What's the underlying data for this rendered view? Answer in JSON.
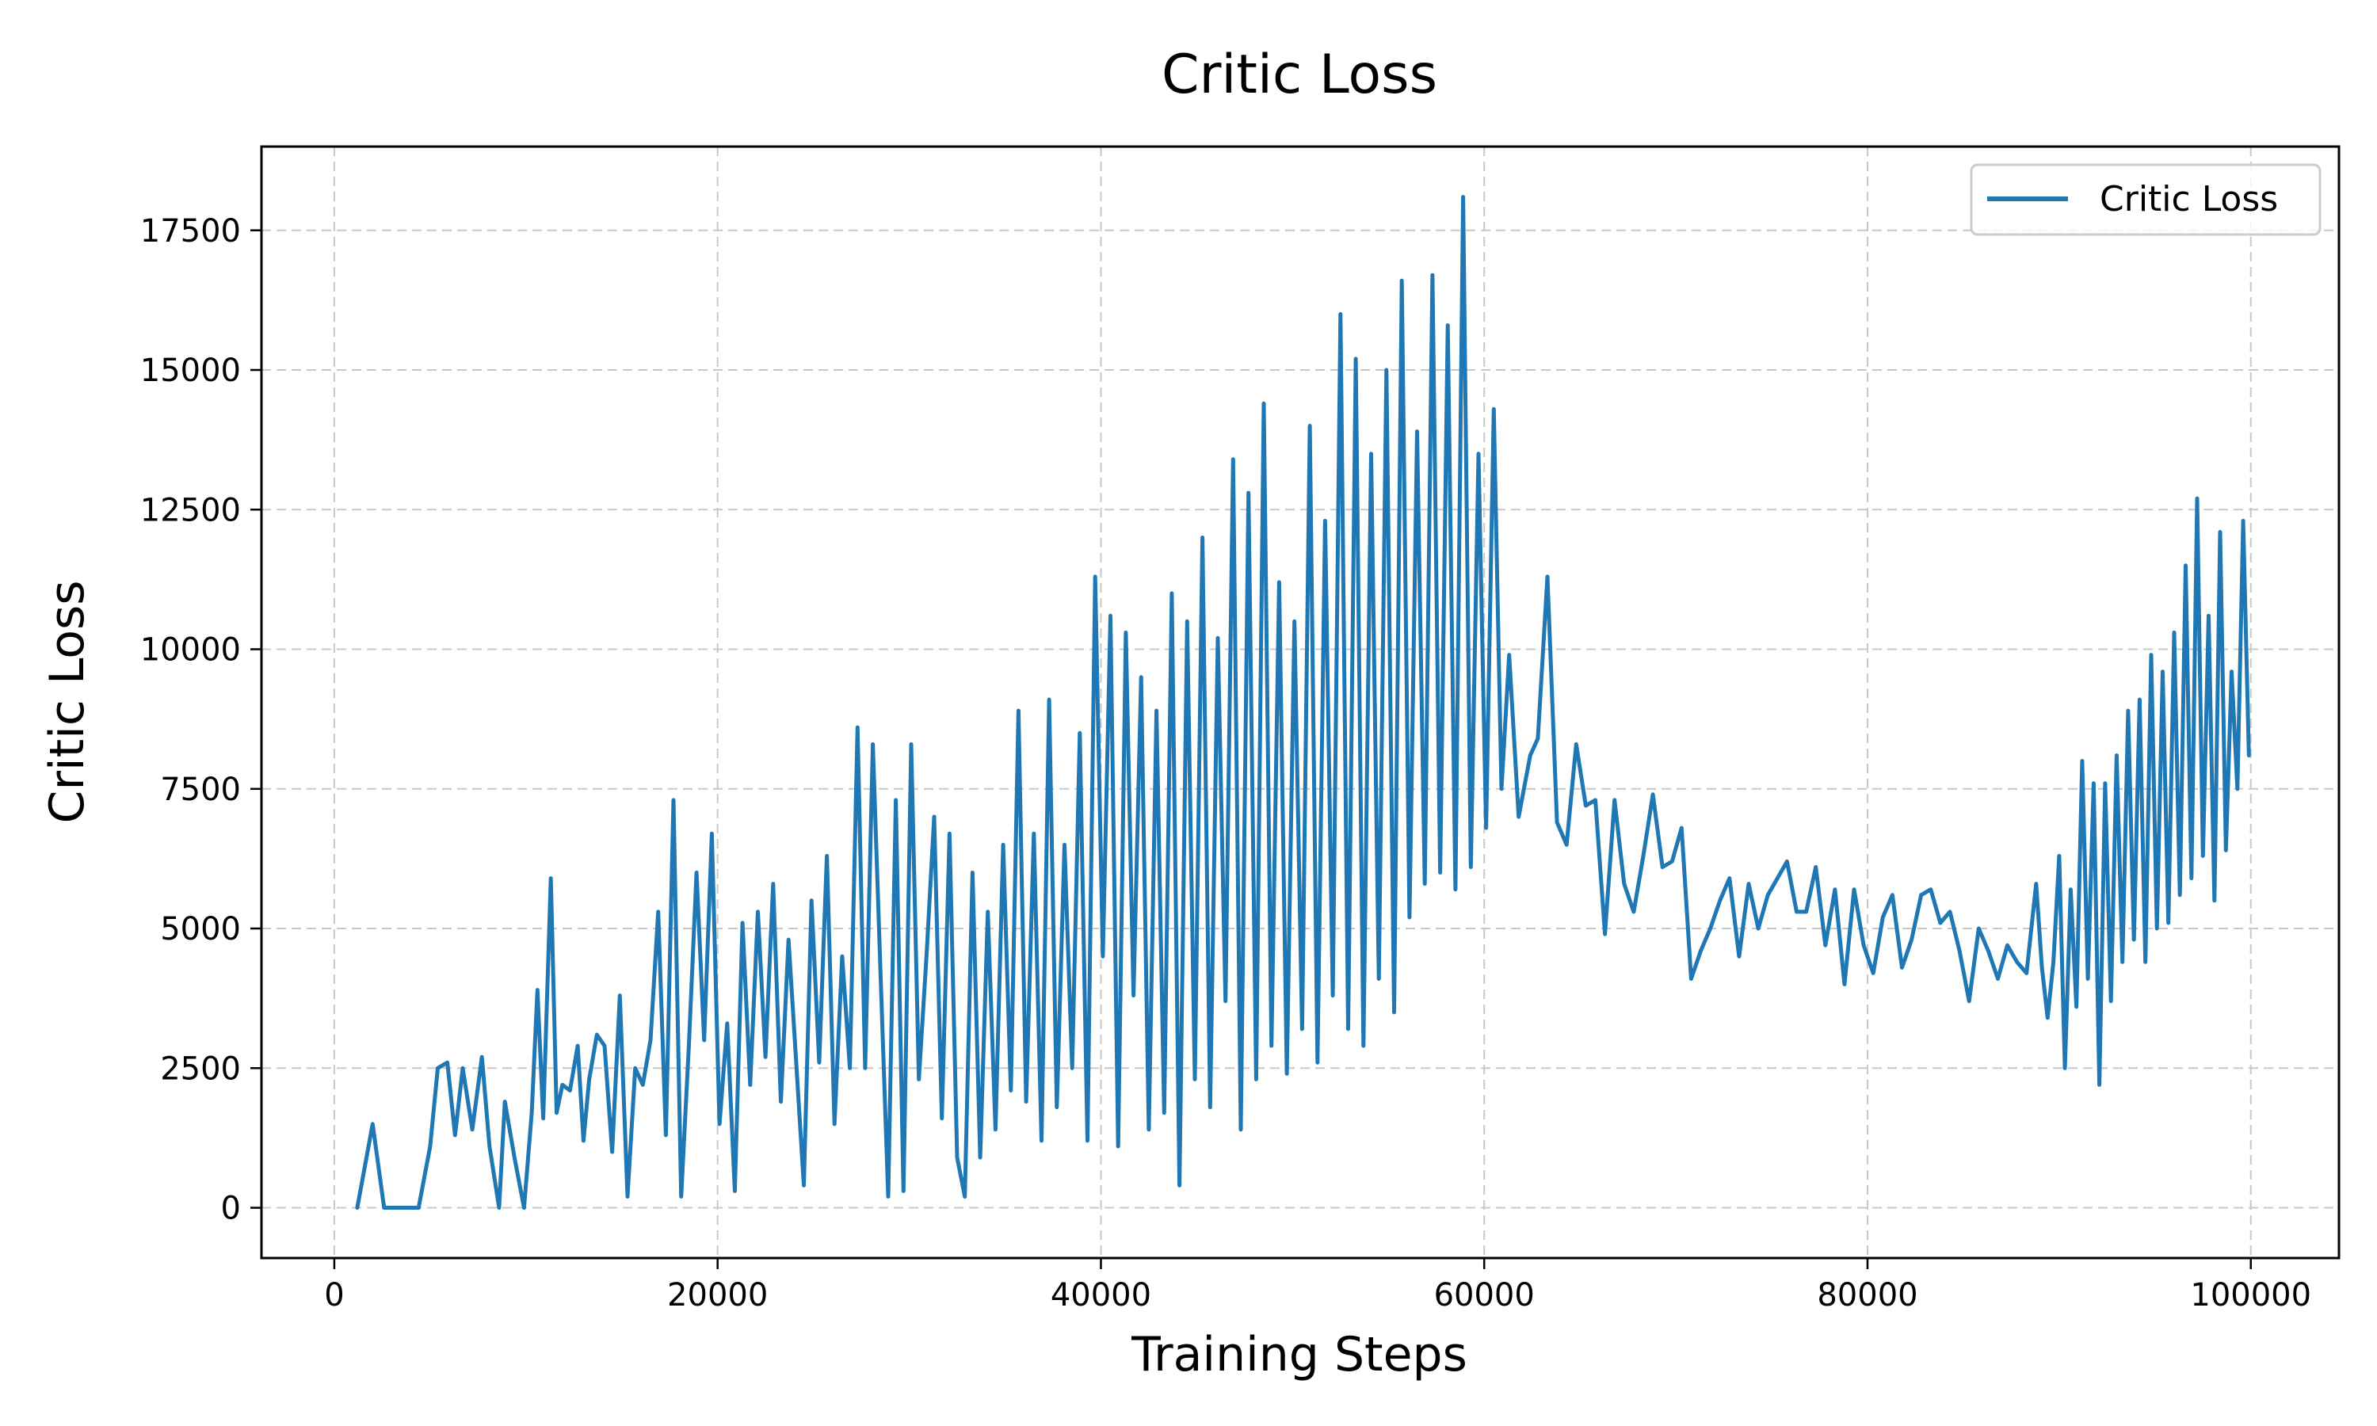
{
  "chart_data": {
    "type": "line",
    "title": "Critic Loss",
    "xlabel": "Training Steps",
    "ylabel": "Critic Loss",
    "xlim": [
      -3800,
      104600
    ],
    "ylim": [
      -900,
      19000
    ],
    "xticks": [
      0,
      20000,
      40000,
      60000,
      80000,
      100000
    ],
    "yticks": [
      0,
      2500,
      5000,
      7500,
      10000,
      12500,
      15000,
      17500
    ],
    "xtick_labels": [
      "0",
      "20000",
      "40000",
      "60000",
      "80000",
      "100000"
    ],
    "ytick_labels": [
      "0",
      "2500",
      "5000",
      "7500",
      "10000",
      "12500",
      "15000",
      "17500"
    ],
    "grid": true,
    "legend_position": "top-right",
    "colors": {
      "line": "#1f77b4",
      "grid": "#c8c8c8",
      "axes": "#000000"
    },
    "series": [
      {
        "name": "Critic Loss",
        "x": [
          1200,
          2000,
          2600,
          3400,
          4400,
          5000,
          5400,
          5900,
          6300,
          6700,
          7200,
          7700,
          8100,
          8600,
          8900,
          9400,
          9900,
          10300,
          10600,
          10900,
          11300,
          11600,
          11900,
          12300,
          12700,
          13000,
          13300,
          13700,
          14100,
          14500,
          14900,
          15300,
          15700,
          16100,
          16500,
          16900,
          17300,
          17700,
          18100,
          18500,
          18900,
          19300,
          19700,
          20100,
          20500,
          20900,
          21300,
          21700,
          22100,
          22500,
          22900,
          23300,
          23700,
          24100,
          24500,
          24900,
          25300,
          25700,
          26100,
          26500,
          26900,
          27300,
          27700,
          28100,
          28500,
          28900,
          29300,
          29700,
          30100,
          30500,
          30900,
          31300,
          31700,
          32100,
          32500,
          32900,
          33300,
          33700,
          34100,
          34500,
          34900,
          35300,
          35700,
          36100,
          36500,
          36900,
          37300,
          37700,
          38100,
          38500,
          38900,
          39300,
          39700,
          40100,
          40500,
          40900,
          41300,
          41700,
          42100,
          42500,
          42900,
          43300,
          43700,
          44100,
          44500,
          44900,
          45300,
          45700,
          46100,
          46500,
          46900,
          47300,
          47700,
          48100,
          48500,
          48900,
          49300,
          49700,
          50100,
          50500,
          50900,
          51300,
          51700,
          52100,
          52500,
          52900,
          53300,
          53700,
          54100,
          54500,
          54900,
          55300,
          55700,
          56100,
          56500,
          56900,
          57300,
          57700,
          58100,
          58500,
          58900,
          59300,
          59700,
          60100,
          60500,
          60900,
          61300,
          61800,
          62400,
          62800,
          63300,
          63800,
          64300,
          64800,
          65300,
          65800,
          66300,
          66800,
          67300,
          67800,
          68300,
          68800,
          69300,
          69800,
          70300,
          70800,
          71300,
          71800,
          72300,
          72800,
          73300,
          73800,
          74300,
          74800,
          75300,
          75800,
          76300,
          76800,
          77300,
          77800,
          78300,
          78800,
          79300,
          79800,
          80300,
          80800,
          81300,
          81800,
          82300,
          82800,
          83300,
          83800,
          84300,
          84800,
          85300,
          85800,
          86300,
          86800,
          87300,
          87800,
          88300,
          88800,
          89100,
          89400,
          89700,
          90000,
          90300,
          90600,
          90900,
          91200,
          91500,
          91800,
          92100,
          92400,
          92700,
          93000,
          93300,
          93600,
          93900,
          94200,
          94500,
          94800,
          95100,
          95400,
          95700,
          96000,
          96300,
          96600,
          96900,
          97200,
          97500,
          97800,
          98100,
          98400,
          98700,
          99000,
          99300,
          99600,
          99900
        ],
        "y": [
          0,
          1500,
          0,
          0,
          0,
          1100,
          2500,
          2600,
          1300,
          2500,
          1400,
          2700,
          1100,
          0,
          1900,
          900,
          0,
          1700,
          3900,
          1600,
          5900,
          1700,
          2200,
          2100,
          2900,
          1200,
          2300,
          3100,
          2900,
          1000,
          3800,
          200,
          2500,
          2200,
          3000,
          5300,
          1300,
          7300,
          200,
          2900,
          6000,
          3000,
          6700,
          1500,
          3300,
          300,
          5100,
          2200,
          5300,
          2700,
          5800,
          1900,
          4800,
          2600,
          400,
          5500,
          2600,
          6300,
          1500,
          4500,
          2500,
          8600,
          2500,
          8300,
          4200,
          200,
          7300,
          300,
          8300,
          2300,
          4500,
          7000,
          1600,
          6700,
          900,
          200,
          6000,
          900,
          5300,
          1400,
          6500,
          2100,
          8900,
          1900,
          6700,
          1200,
          9100,
          1800,
          6500,
          2500,
          8500,
          1200,
          11300,
          4500,
          10600,
          1100,
          10300,
          3800,
          9500,
          1400,
          8900,
          1700,
          11000,
          400,
          10500,
          2300,
          12000,
          1800,
          10200,
          3700,
          13400,
          1400,
          12800,
          2300,
          14400,
          2900,
          11200,
          2400,
          10500,
          3200,
          14000,
          2600,
          12300,
          3800,
          16000,
          3200,
          15200,
          2900,
          13500,
          4100,
          15000,
          3500,
          16600,
          5200,
          13900,
          5800,
          16700,
          6000,
          15800,
          5700,
          18100,
          6100,
          13500,
          6800,
          14300,
          7500,
          9900,
          7000,
          8100,
          8400,
          11300,
          6900,
          6500,
          8300,
          7200,
          7300,
          4900,
          7300,
          5800,
          5300,
          6300,
          7400,
          6100,
          6200,
          6800,
          4100,
          4600,
          5000,
          5500,
          5900,
          4500,
          5800,
          5000,
          5600,
          5900,
          6200,
          5300,
          5300,
          6100,
          4700,
          5700,
          4000,
          5700,
          4700,
          4200,
          5200,
          5600,
          4300,
          4800,
          5600,
          5700,
          5100,
          5300,
          4600,
          3700,
          5000,
          4600,
          4100,
          4700,
          4400,
          4200,
          5800,
          4300,
          3400,
          4400,
          6300,
          2500,
          5700,
          3600,
          8000,
          4100,
          7600,
          2200,
          7600,
          3700,
          8100,
          4400,
          8900,
          4800,
          9100,
          4400,
          9900,
          5000,
          9600,
          5100,
          10300,
          5600,
          11500,
          5900,
          12700,
          6300,
          10600,
          5500,
          12100,
          6400,
          9600,
          7500,
          12300,
          8100
        ]
      }
    ]
  }
}
